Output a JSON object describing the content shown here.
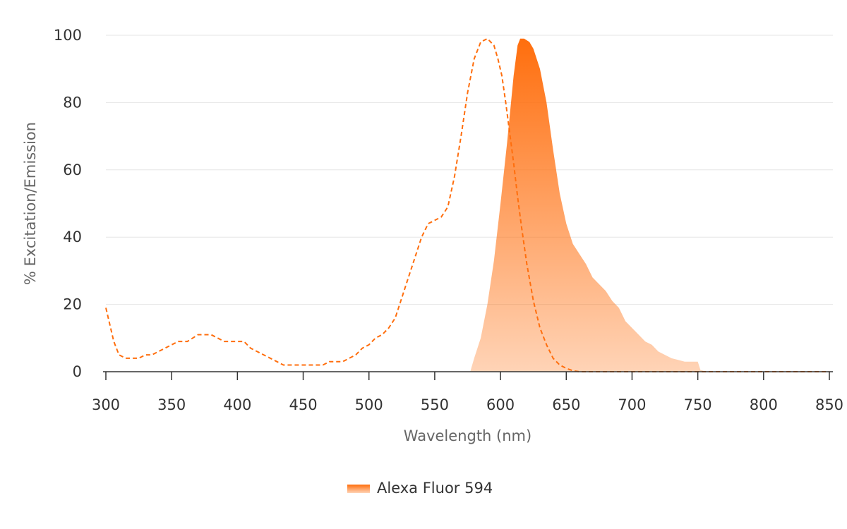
{
  "chart_data": {
    "type": "area",
    "xlabel": "Wavelength (nm)",
    "ylabel": "% Excitation/Emission",
    "xlim": [
      300,
      850
    ],
    "ylim": [
      0,
      100
    ],
    "x_ticks": [
      300,
      350,
      400,
      450,
      500,
      550,
      600,
      650,
      700,
      750,
      800,
      850
    ],
    "y_ticks": [
      0,
      20,
      40,
      60,
      80,
      100
    ],
    "grid": "horizontal",
    "legend": {
      "position": "bottom-center",
      "entries": [
        "Alexa Fluor 594"
      ]
    },
    "colors": {
      "accent": "#ff6e0d",
      "fill_light": "#fdd2b4",
      "grid": "#e6e6e6",
      "axis": "#333333"
    },
    "series": [
      {
        "name": "Alexa Fluor 594",
        "role": "excitation",
        "style": "dashed-line",
        "points": [
          [
            300,
            19
          ],
          [
            303,
            14
          ],
          [
            306,
            9
          ],
          [
            310,
            5
          ],
          [
            315,
            4
          ],
          [
            325,
            4
          ],
          [
            330,
            5
          ],
          [
            335,
            5
          ],
          [
            340,
            6
          ],
          [
            350,
            8
          ],
          [
            355,
            9
          ],
          [
            362,
            9
          ],
          [
            370,
            11
          ],
          [
            380,
            11
          ],
          [
            385,
            10
          ],
          [
            390,
            9
          ],
          [
            405,
            9
          ],
          [
            410,
            7
          ],
          [
            420,
            5
          ],
          [
            430,
            3
          ],
          [
            435,
            2
          ],
          [
            465,
            2
          ],
          [
            470,
            3
          ],
          [
            480,
            3
          ],
          [
            485,
            4
          ],
          [
            490,
            5
          ],
          [
            495,
            7
          ],
          [
            500,
            8
          ],
          [
            505,
            10
          ],
          [
            510,
            11
          ],
          [
            515,
            13
          ],
          [
            520,
            16
          ],
          [
            525,
            22
          ],
          [
            530,
            28
          ],
          [
            535,
            34
          ],
          [
            540,
            40
          ],
          [
            545,
            44
          ],
          [
            550,
            45
          ],
          [
            555,
            46
          ],
          [
            560,
            49
          ],
          [
            565,
            58
          ],
          [
            570,
            70
          ],
          [
            575,
            83
          ],
          [
            580,
            93
          ],
          [
            585,
            98
          ],
          [
            590,
            99
          ],
          [
            595,
            97
          ],
          [
            598,
            93
          ],
          [
            601,
            88
          ],
          [
            604,
            80
          ],
          [
            607,
            71
          ],
          [
            610,
            62
          ],
          [
            613,
            52
          ],
          [
            616,
            43
          ],
          [
            620,
            32
          ],
          [
            625,
            21
          ],
          [
            630,
            13
          ],
          [
            635,
            8
          ],
          [
            640,
            4
          ],
          [
            645,
            2
          ],
          [
            650,
            1
          ],
          [
            655,
            0.3
          ],
          [
            660,
            0
          ],
          [
            850,
            0
          ]
        ]
      },
      {
        "name": "Alexa Fluor 594",
        "role": "emission",
        "style": "filled-area",
        "points": [
          [
            577,
            0
          ],
          [
            580,
            4
          ],
          [
            585,
            10
          ],
          [
            590,
            20
          ],
          [
            595,
            33
          ],
          [
            600,
            50
          ],
          [
            605,
            68
          ],
          [
            610,
            88
          ],
          [
            613,
            97
          ],
          [
            615,
            99
          ],
          [
            618,
            99
          ],
          [
            622,
            98
          ],
          [
            625,
            96
          ],
          [
            630,
            90
          ],
          [
            635,
            80
          ],
          [
            640,
            66
          ],
          [
            645,
            53
          ],
          [
            650,
            44
          ],
          [
            655,
            38
          ],
          [
            660,
            35
          ],
          [
            665,
            32
          ],
          [
            670,
            28
          ],
          [
            675,
            26
          ],
          [
            680,
            24
          ],
          [
            685,
            21
          ],
          [
            690,
            19
          ],
          [
            695,
            15
          ],
          [
            700,
            13
          ],
          [
            705,
            11
          ],
          [
            710,
            9
          ],
          [
            715,
            8
          ],
          [
            720,
            6
          ],
          [
            725,
            5
          ],
          [
            730,
            4
          ],
          [
            735,
            3.5
          ],
          [
            740,
            3
          ],
          [
            745,
            3
          ],
          [
            750,
            3
          ],
          [
            752,
            0.5
          ],
          [
            755,
            0.2
          ],
          [
            760,
            0
          ],
          [
            850,
            0
          ]
        ]
      }
    ]
  }
}
